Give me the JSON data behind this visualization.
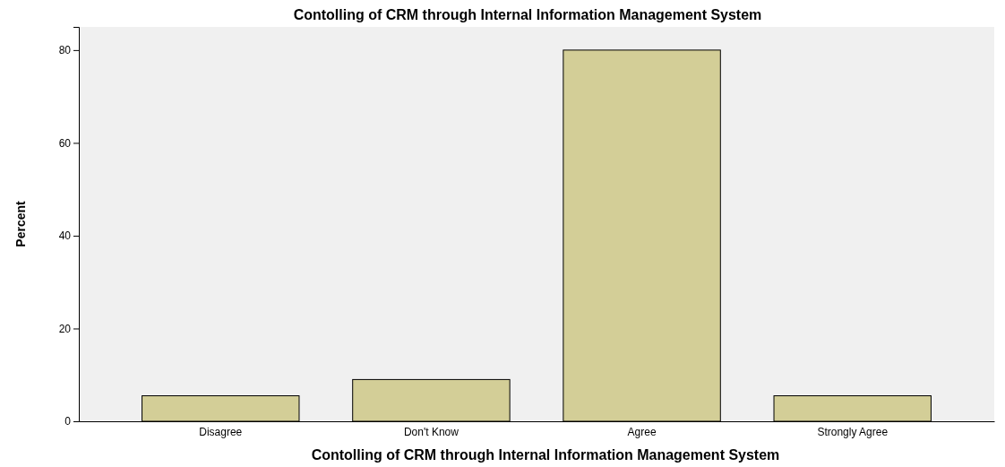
{
  "chart_data": {
    "type": "bar",
    "title": "Contolling of CRM through Internal Information Management System",
    "xlabel": "Contolling of CRM through Internal Information Management System",
    "ylabel": "Percent",
    "categories": [
      "Disagree",
      "Don't Know",
      "Agree",
      "Strongly Agree"
    ],
    "values": [
      5.5,
      9.0,
      80,
      5.5
    ],
    "color": "#d3ce97",
    "ylim": [
      0,
      85
    ],
    "yticks": [
      0,
      20,
      40,
      60,
      80
    ],
    "grid": false
  }
}
